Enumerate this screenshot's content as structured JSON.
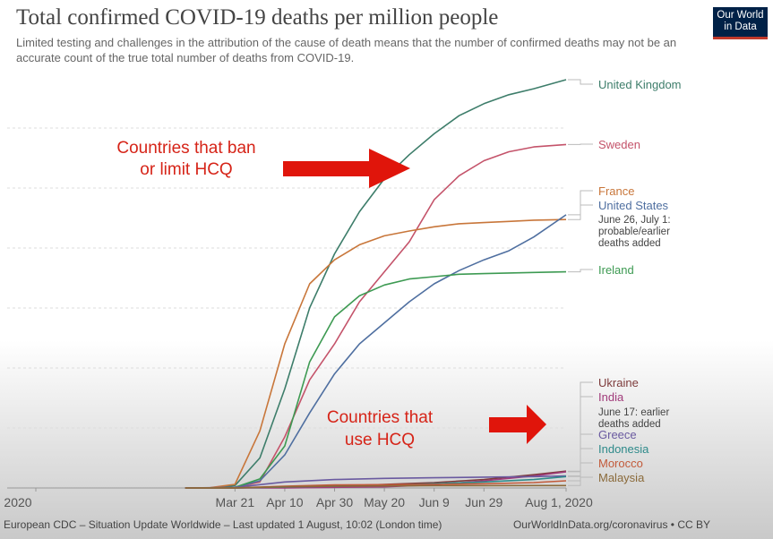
{
  "chart_data": {
    "type": "line",
    "title": "Total confirmed COVID-19 deaths per million people",
    "subtitle": "Limited testing and challenges in the attribution of the cause of death means that the number of confirmed deaths may not be an accurate count of the true total number of deaths from COVID-19.",
    "xlabel": "",
    "ylabel": "",
    "x_ticks": [
      "2020",
      "Mar 21",
      "Apr 10",
      "Apr 30",
      "May 20",
      "Jun 9",
      "Jun 29",
      "Aug 1, 2020"
    ],
    "x_tick_days": [
      0,
      80,
      100,
      120,
      140,
      160,
      180,
      213
    ],
    "y_tick_labels_shown": false,
    "grid": "horizontal dashed",
    "ylim": [
      0,
      680
    ],
    "series": [
      {
        "name": "United Kingdom",
        "color": "#3d7d6a",
        "x": [
          "Mar 1",
          "Mar 11",
          "Mar 21",
          "Mar 31",
          "Apr 10",
          "Apr 20",
          "Apr 30",
          "May 10",
          "May 20",
          "May 30",
          "Jun 9",
          "Jun 19",
          "Jun 29",
          "Jul 9",
          "Jul 19",
          "Aug 1"
        ],
        "y": [
          0,
          0.1,
          4,
          50,
          165,
          300,
          390,
          460,
          515,
          555,
          590,
          620,
          640,
          655,
          665,
          680
        ]
      },
      {
        "name": "Sweden",
        "color": "#c4536a",
        "x": [
          "Mar 1",
          "Mar 11",
          "Mar 21",
          "Mar 31",
          "Apr 10",
          "Apr 20",
          "Apr 30",
          "May 10",
          "May 20",
          "May 30",
          "Jun 9",
          "Jun 19",
          "Jun 29",
          "Jul 9",
          "Jul 19",
          "Aug 1"
        ],
        "y": [
          0,
          0,
          1,
          10,
          85,
          180,
          240,
          310,
          360,
          410,
          480,
          520,
          545,
          560,
          568,
          572
        ]
      },
      {
        "name": "France",
        "color": "#c8763a",
        "x": [
          "Mar 1",
          "Mar 11",
          "Mar 21",
          "Mar 31",
          "Apr 10",
          "Apr 20",
          "Apr 30",
          "May 10",
          "May 20",
          "May 30",
          "Jun 9",
          "Jun 19",
          "Jun 29",
          "Jul 9",
          "Jul 19",
          "Aug 1"
        ],
        "y": [
          0,
          0.5,
          6,
          95,
          240,
          340,
          380,
          405,
          420,
          428,
          435,
          440,
          442,
          444,
          446,
          447
        ]
      },
      {
        "name": "United States",
        "color": "#4f6fa0",
        "x": [
          "Mar 1",
          "Mar 11",
          "Mar 21",
          "Mar 31",
          "Apr 10",
          "Apr 20",
          "Apr 30",
          "May 10",
          "May 20",
          "May 30",
          "Jun 9",
          "Jun 19",
          "Jun 29",
          "Jul 9",
          "Jul 19",
          "Aug 1"
        ],
        "y": [
          0,
          0,
          1,
          12,
          55,
          125,
          190,
          240,
          275,
          310,
          340,
          362,
          380,
          395,
          418,
          455
        ]
      },
      {
        "name": "Ireland",
        "color": "#3d9a52",
        "x": [
          "Mar 1",
          "Mar 11",
          "Mar 21",
          "Mar 31",
          "Apr 10",
          "Apr 20",
          "Apr 30",
          "May 10",
          "May 20",
          "May 30",
          "Jun 9",
          "Jun 19",
          "Jun 29",
          "Jul 9",
          "Jul 19",
          "Aug 1"
        ],
        "y": [
          0,
          0,
          1,
          15,
          70,
          210,
          285,
          320,
          338,
          348,
          352,
          356,
          357,
          358,
          359,
          360
        ]
      },
      {
        "name": "Ukraine",
        "color": "#7d3b3b",
        "x": [
          "Mar 1",
          "Mar 21",
          "Apr 10",
          "Apr 30",
          "May 20",
          "Jun 9",
          "Jun 29",
          "Jul 19",
          "Aug 1"
        ],
        "y": [
          0,
          0,
          1,
          3,
          6,
          9,
          14,
          22,
          28
        ]
      },
      {
        "name": "India",
        "color": "#a03a7a",
        "x": [
          "Mar 1",
          "Mar 21",
          "Apr 10",
          "Apr 30",
          "May 20",
          "Jun 9",
          "Jun 29",
          "Jul 19",
          "Aug 1"
        ],
        "y": [
          0,
          0,
          0.2,
          1,
          2,
          5,
          12,
          20,
          27
        ]
      },
      {
        "name": "Greece",
        "color": "#6a5aa0",
        "x": [
          "Mar 1",
          "Mar 21",
          "Apr 10",
          "Apr 30",
          "May 20",
          "Jun 9",
          "Jun 29",
          "Jul 19",
          "Aug 1"
        ],
        "y": [
          0,
          1,
          10,
          14,
          16,
          17,
          18,
          19,
          20
        ]
      },
      {
        "name": "Indonesia",
        "color": "#2e8a8a",
        "x": [
          "Mar 1",
          "Mar 21",
          "Apr 10",
          "Apr 30",
          "May 20",
          "Jun 9",
          "Jun 29",
          "Jul 19",
          "Aug 1"
        ],
        "y": [
          0,
          0.1,
          1.5,
          3,
          4.5,
          7,
          10,
          14,
          19
        ]
      },
      {
        "name": "Morocco",
        "color": "#c25a3a",
        "x": [
          "Mar 1",
          "Mar 21",
          "Apr 10",
          "Apr 30",
          "May 20",
          "Jun 9",
          "Jun 29",
          "Jul 19",
          "Aug 1"
        ],
        "y": [
          0,
          0.1,
          3,
          5,
          5.5,
          6,
          7,
          9,
          12
        ]
      },
      {
        "name": "Malaysia",
        "color": "#8a6a3a",
        "x": [
          "Mar 1",
          "Mar 21",
          "Apr 10",
          "Apr 30",
          "May 20",
          "Jun 9",
          "Jun 29",
          "Jul 19",
          "Aug 1"
        ],
        "y": [
          0,
          0.1,
          2,
          3,
          3.5,
          3.8,
          3.9,
          4,
          4
        ]
      }
    ],
    "annotations": [
      {
        "text": "June 26, July 1: probable/earlier deaths added",
        "attached_to": [
          "France",
          "United States"
        ]
      },
      {
        "text": "June 17: earlier deaths added",
        "attached_to": [
          "India"
        ]
      }
    ]
  },
  "overlay": {
    "ban_label_line1": "Countries that ban",
    "ban_label_line2": "or limit HCQ",
    "use_label_line1": "Countries that",
    "use_label_line2": "use HCQ",
    "arrow_color": "#e0150b"
  },
  "logo": {
    "line1": "Our World",
    "line2": "in Data",
    "bg": "#002147",
    "accent": "#c0392b"
  },
  "footer": {
    "source": "European CDC – Situation Update Worldwide – Last updated 1 August, 10:02 (London time)",
    "link": "OurWorldInData.org/coronavirus • CC BY"
  }
}
